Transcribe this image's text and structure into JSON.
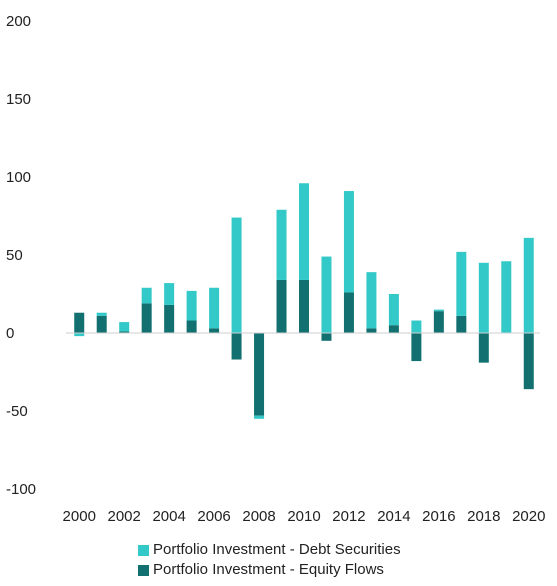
{
  "chart_data": {
    "type": "bar",
    "stacked": true,
    "x": [
      2000,
      2001,
      2002,
      2003,
      2004,
      2005,
      2006,
      2007,
      2008,
      2009,
      2010,
      2011,
      2012,
      2013,
      2014,
      2015,
      2016,
      2017,
      2018,
      2019,
      2020
    ],
    "x_tick_labels": [
      "2000",
      "2002",
      "2004",
      "2006",
      "2008",
      "2010",
      "2012",
      "2014",
      "2016",
      "2018",
      "2020"
    ],
    "y_tick_labels": [
      "200",
      "150",
      "100",
      "50",
      "0",
      "-50",
      "-100"
    ],
    "ylim": [
      -100,
      200
    ],
    "grid": false,
    "legend_position": "bottom",
    "title": "",
    "xlabel": "",
    "ylabel": "",
    "series": [
      {
        "name": "Portfolio Investment - Debt Securities",
        "color": "#33c9c9",
        "values": [
          -2,
          2,
          6,
          10,
          14,
          19,
          26,
          74,
          -2,
          45,
          62,
          49,
          65,
          36,
          20,
          8,
          1,
          41,
          45,
          46,
          61
        ]
      },
      {
        "name": "Portfolio Investment - Equity Flows",
        "color": "#127070",
        "values": [
          13,
          11,
          1,
          19,
          18,
          8,
          3,
          -17,
          -53,
          34,
          34,
          -5,
          26,
          3,
          5,
          -18,
          14,
          11,
          -19,
          0,
          -36
        ]
      }
    ]
  }
}
